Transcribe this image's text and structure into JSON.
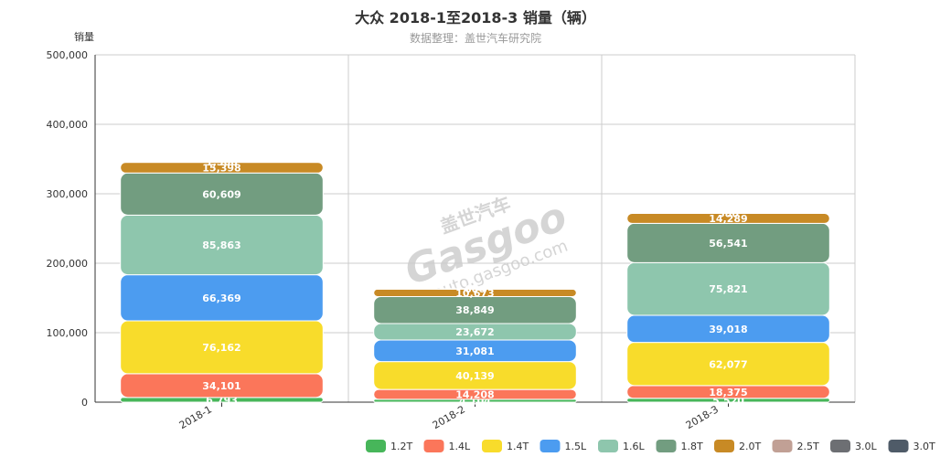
{
  "title": "大众 2018-1至2018-3 销量（辆）",
  "subtitle": "数据整理：盖世汽车研究院",
  "watermark": {
    "brand_cn": "盖世汽车",
    "brand": "Gasgoo",
    "url": "auto.gasgoo.com"
  },
  "chart_data": {
    "type": "bar",
    "stacked": true,
    "title": "大众 2018-1至2018-3 销量（辆）",
    "ylabel": "销量",
    "ylim": [
      0,
      500000
    ],
    "yticks": [
      0,
      100000,
      200000,
      300000,
      400000,
      500000
    ],
    "ytick_labels": [
      "0",
      "100,000",
      "200,000",
      "300,000",
      "400,000",
      "500,000"
    ],
    "grid": true,
    "legend_position": "bottom-right",
    "categories": [
      "2018-1",
      "2018-2",
      "2018-3"
    ],
    "series": [
      {
        "name": "1.2T",
        "color": "#47b65a",
        "values": [
          6793,
          4104,
          5520
        ]
      },
      {
        "name": "1.4L",
        "color": "#fb765a",
        "values": [
          34101,
          14208,
          18375
        ]
      },
      {
        "name": "1.4T",
        "color": "#f8dc2b",
        "values": [
          76162,
          40139,
          62077
        ]
      },
      {
        "name": "1.5L",
        "color": "#4c9cf0",
        "values": [
          66369,
          31081,
          39018
        ]
      },
      {
        "name": "1.6L",
        "color": "#8ec6ad",
        "values": [
          85863,
          23672,
          75821
        ]
      },
      {
        "name": "1.8T",
        "color": "#729d80",
        "values": [
          60609,
          38849,
          56541
        ]
      },
      {
        "name": "2.0T",
        "color": "#c88a25",
        "values": [
          15398,
          10673,
          14289
        ]
      },
      {
        "name": "2.5T",
        "color": "#c1a095",
        "values": [
          1308,
          600,
          580
        ]
      },
      {
        "name": "3.0L",
        "color": "#6d6f73",
        "values": [
          0,
          0,
          0
        ]
      },
      {
        "name": "3.0T",
        "color": "#4f5b68",
        "values": [
          0,
          0,
          0
        ]
      }
    ]
  }
}
